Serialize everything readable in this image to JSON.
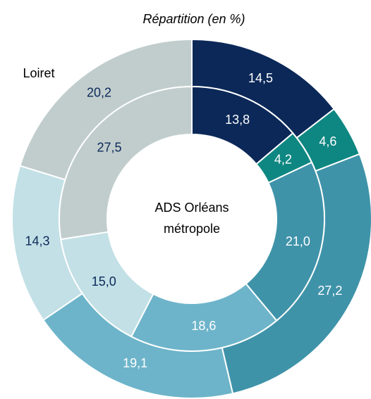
{
  "chart_data": {
    "type": "donut",
    "title": "Répartition (en %)",
    "series": [
      {
        "name": "Loiret",
        "values": [
          14.5,
          4.6,
          27.2,
          19.1,
          14.3,
          20.2
        ],
        "value_labels": [
          "14,5",
          "4,6",
          "27,2",
          "19,1",
          "14,3",
          "20,2"
        ],
        "colors": [
          "#0b2858",
          "#0e8782",
          "#3f93a9",
          "#6db4ca",
          "#c2e0e6",
          "#c1cdcd"
        ],
        "label_colors": [
          "#ffffff",
          "#ffffff",
          "#ffffff",
          "#ffffff",
          "#0b2858",
          "#0b2858"
        ]
      },
      {
        "name": "ADS Orléans métropole",
        "values": [
          13.8,
          4.2,
          21.0,
          18.6,
          15.0,
          27.5
        ],
        "value_labels": [
          "13,8",
          "4,2",
          "21,0",
          "18,6",
          "15,0",
          "27,5"
        ],
        "colors": [
          "#0b2858",
          "#0e8782",
          "#3f93a9",
          "#6db4ca",
          "#c2e0e6",
          "#c1cdcd"
        ],
        "label_colors": [
          "#ffffff",
          "#ffffff",
          "#ffffff",
          "#ffffff",
          "#0b2858",
          "#0b2858"
        ]
      }
    ]
  }
}
